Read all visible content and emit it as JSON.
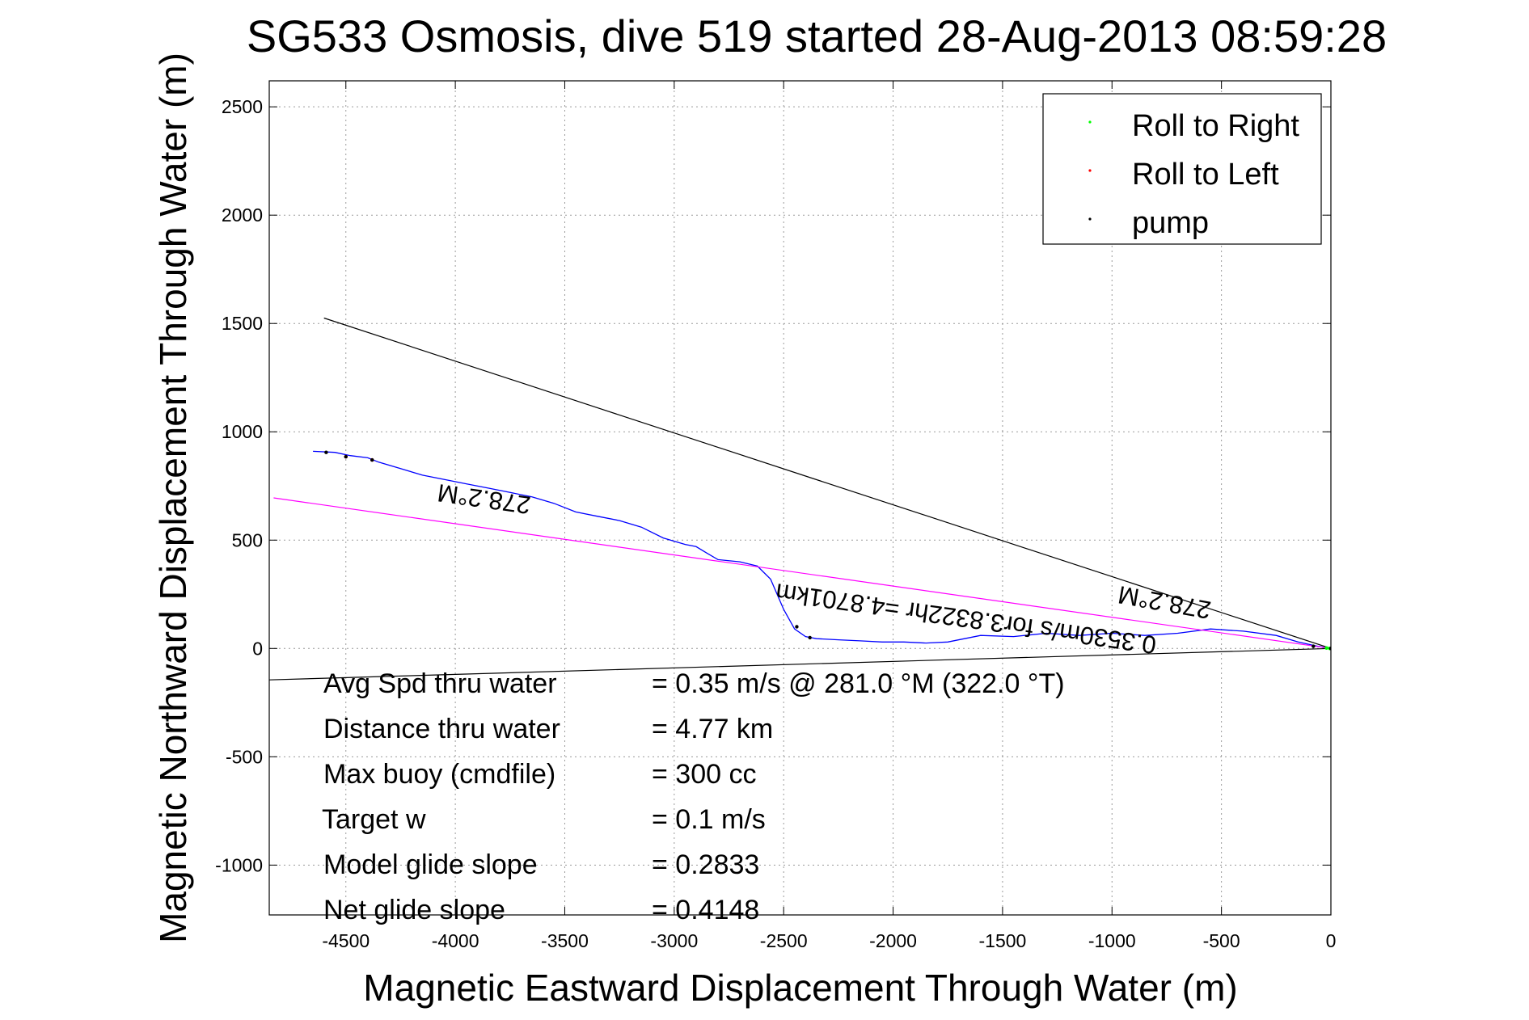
{
  "chart_data": {
    "type": "line",
    "title": "SG533 Osmosis, dive 519 started 28-Aug-2013 08:59:28",
    "xlabel": "Magnetic Eastward Displacement Through Water (m)",
    "ylabel": "Magnetic Northward Displacement Through Water (m)",
    "xlim": [
      -4850,
      0
    ],
    "ylim": [
      -1230,
      2620
    ],
    "xticks": [
      -4500,
      -4000,
      -3500,
      -3000,
      -2500,
      -2000,
      -1500,
      -1000,
      -500,
      0
    ],
    "yticks": [
      -1000,
      -500,
      0,
      500,
      1000,
      1500,
      2000,
      2500
    ],
    "grid": true,
    "legend_position": "top-right",
    "legend": [
      {
        "name": "Roll to Right",
        "color": "#00ff00"
      },
      {
        "name": "Roll to Left",
        "color": "#ff0000"
      },
      {
        "name": "pump",
        "color": "#000000"
      }
    ],
    "series": [
      {
        "name": "track",
        "color": "#0000ff",
        "x": [
          0,
          -60,
          -150,
          -250,
          -400,
          -550,
          -700,
          -850,
          -1000,
          -1150,
          -1300,
          -1450,
          -1600,
          -1750,
          -1850,
          -1950,
          -2050,
          -2150,
          -2250,
          -2350,
          -2400,
          -2450,
          -2500,
          -2560,
          -2620,
          -2700,
          -2800,
          -2850,
          -2900,
          -2950,
          -3050,
          -3150,
          -3250,
          -3350,
          -3450,
          -3550,
          -3650,
          -3750,
          -3850,
          -3950,
          -4050,
          -4150,
          -4250,
          -4350,
          -4400,
          -4480,
          -4550,
          -4650
        ],
        "y": [
          0,
          10,
          30,
          60,
          80,
          90,
          70,
          60,
          70,
          60,
          70,
          55,
          60,
          30,
          25,
          30,
          30,
          35,
          40,
          45,
          55,
          90,
          180,
          320,
          380,
          400,
          410,
          440,
          470,
          480,
          510,
          560,
          590,
          610,
          630,
          670,
          700,
          720,
          740,
          760,
          780,
          800,
          830,
          860,
          880,
          890,
          905,
          910
        ]
      },
      {
        "name": "fit line",
        "color": "#ff00ff",
        "x": [
          0,
          -4830
        ],
        "y": [
          0,
          695
        ]
      },
      {
        "name": "heading line upper",
        "color": "#000000",
        "x": [
          0,
          -4600
        ],
        "y": [
          0,
          1525
        ]
      },
      {
        "name": "heading line lower",
        "color": "#000000",
        "x": [
          0,
          -4850
        ],
        "y": [
          0,
          -145
        ]
      }
    ],
    "markers": {
      "roll_right": {
        "color": "#00ff00",
        "x": [
          -5,
          -20
        ],
        "y": [
          0,
          2
        ]
      },
      "roll_left": {
        "color": "#ff0000",
        "x": [
          -4380,
          -4500
        ],
        "y": [
          870,
          885
        ]
      },
      "pump": {
        "color": "#000000",
        "x": [
          0,
          -80,
          -2380,
          -2440,
          -4380,
          -4500,
          -4590
        ],
        "y": [
          0,
          10,
          50,
          100,
          870,
          885,
          905
        ]
      }
    },
    "annotations": {
      "heading_upper": "278.2°M",
      "heading_lower": "278.2°M",
      "current_text": "0.3530m/s for3.8322hr =4.8701km"
    },
    "stats": [
      {
        "label": "Avg Spd thru water",
        "value": "=  0.35 m/s @ 281.0 °M (322.0 °T)"
      },
      {
        "label": "Distance thru water",
        "value": "=  4.77 km"
      },
      {
        "label": "Max buoy (cmdfile)",
        "value": "= 300 cc"
      },
      {
        "label": "Target w",
        "value": "= 0.1 m/s"
      },
      {
        "label": "Model glide slope",
        "value": "= 0.2833"
      },
      {
        "label": "Net glide slope",
        "value": "= 0.4148"
      }
    ]
  }
}
